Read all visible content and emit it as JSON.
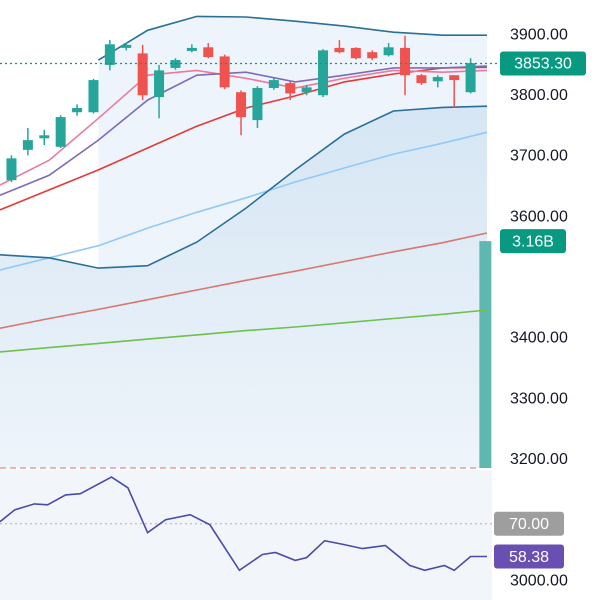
{
  "chart_data": {
    "type": "candlestick",
    "x": [
      1,
      2,
      3,
      4,
      5,
      6,
      7,
      8,
      9,
      10,
      11,
      12,
      13,
      14,
      15,
      16,
      17,
      18,
      19,
      20,
      21,
      22,
      23,
      24,
      25,
      26,
      27,
      28,
      29
    ],
    "open": [
      3661,
      3711,
      3730,
      3716,
      3773,
      3773,
      3851,
      3879,
      3870,
      3798,
      3846,
      3874,
      3880,
      3865,
      3806,
      3760,
      3813,
      3821,
      3806,
      3801,
      3879,
      3879,
      3872,
      3867,
      3879,
      3834,
      3824,
      3834,
      3806
    ],
    "high": [
      3702,
      3747,
      3744,
      3768,
      3786,
      3828,
      3892,
      3888,
      3884,
      3851,
      3862,
      3885,
      3887,
      3868,
      3809,
      3816,
      3829,
      3824,
      3818,
      3877,
      3892,
      3880,
      3875,
      3887,
      3899,
      3836,
      3834,
      3834,
      3862
    ],
    "low": [
      3658,
      3702,
      3719,
      3714,
      3767,
      3771,
      3842,
      3875,
      3793,
      3763,
      3843,
      3872,
      3862,
      3811,
      3735,
      3747,
      3810,
      3793,
      3801,
      3798,
      3870,
      3860,
      3859,
      3865,
      3801,
      3818,
      3814,
      3780,
      3804
    ],
    "close": [
      3697,
      3727,
      3735,
      3765,
      3780,
      3826,
      3885,
      3884,
      3801,
      3842,
      3859,
      3879,
      3864,
      3814,
      3765,
      3813,
      3826,
      3804,
      3814,
      3875,
      3872,
      3862,
      3862,
      3880,
      3834,
      3821,
      3831,
      3826,
      3854
    ],
    "up_color": "#26a69a",
    "down_color": "#ef5350",
    "xlim": [
      0.3,
      30
    ],
    "ylim": [
      2969,
      3958
    ],
    "yticks": [
      {
        "value": 3900,
        "label": "3900.00"
      },
      {
        "value": 3800,
        "label": "3800.00"
      },
      {
        "value": 3700,
        "label": "3700.00"
      },
      {
        "value": 3600,
        "label": "3600.00"
      },
      {
        "value": 3400,
        "label": "3400.00"
      },
      {
        "value": 3300,
        "label": "3300.00"
      },
      {
        "value": 3200,
        "label": "3200.00"
      },
      {
        "value": 3000,
        "label": "3000.00"
      }
    ],
    "grid": false,
    "line_x": [
      0.3,
      3.3,
      6.3,
      9.3,
      12.3,
      15.3,
      18.3,
      21.3,
      24.3,
      27.3,
      30
    ],
    "bands": {
      "color": "#2a6f97",
      "fill": "#eef4fb",
      "upper": [
        null,
        null,
        3859,
        3908,
        3931,
        3930,
        3923,
        3915,
        3905,
        3900,
        3900
      ],
      "lower": [
        3538,
        3533,
        3516,
        3520,
        3559,
        3615,
        3678,
        3737,
        3775,
        3781,
        3783
      ]
    },
    "lines": [
      {
        "color": "#90caf9",
        "values": [
          3513,
          3533,
          3553,
          3582,
          3608,
          3632,
          3658,
          3681,
          3704,
          3722,
          3740
        ]
      },
      {
        "color": "#e53935",
        "values": [
          3612,
          3645,
          3678,
          3714,
          3750,
          3780,
          3800,
          3823,
          3836,
          3846,
          3847
        ]
      },
      {
        "color": "#ec7aa0",
        "values": [
          3653,
          3694,
          3763,
          3834,
          3842,
          3829,
          3813,
          3829,
          3842,
          3839,
          3842
        ]
      },
      {
        "color": "#7e6bb8",
        "values": [
          3636,
          3669,
          3727,
          3793,
          3834,
          3839,
          3823,
          3834,
          3846,
          3846,
          3849
        ]
      },
      {
        "color": "#d9776e",
        "values": [
          3417,
          3433,
          3448,
          3464,
          3480,
          3496,
          3511,
          3527,
          3543,
          3558,
          3574
        ]
      },
      {
        "color": "#6cc24a",
        "values": [
          3378,
          3385,
          3392,
          3399,
          3406,
          3413,
          3419,
          3426,
          3433,
          3440,
          3447
        ]
      }
    ],
    "last_price": {
      "value": 3853.3,
      "label": "3853.30",
      "color": "#089981"
    },
    "volume": {
      "x": [
        29.9
      ],
      "values": [
        3160000000
      ],
      "value_labels": [
        "3.16B"
      ],
      "color": "#5fb8b0",
      "label_color": "#089981",
      "ylim": [
        0,
        5000000000
      ]
    },
    "rsi": {
      "color": "#4a4aa8",
      "x": [
        0.3,
        1.2,
        2.4,
        3.2,
        4.3,
        5.2,
        7.1,
        8.1,
        9.3,
        10.4,
        11.9,
        13.1,
        14.9,
        16.3,
        17.1,
        18.3,
        19.0,
        20.1,
        21.3,
        22.4,
        23.8,
        25.3,
        26.2,
        27.4,
        28.0,
        29.0,
        30
      ],
      "values": [
        70.7,
        74.9,
        77.0,
        76.7,
        80.2,
        80.6,
        86.5,
        82.7,
        66.8,
        71.4,
        73.2,
        69.6,
        53.5,
        59.1,
        59.8,
        57.0,
        58.0,
        64.0,
        62.6,
        61.2,
        62.3,
        55.2,
        53.5,
        55.2,
        53.5,
        58.4,
        58.38
      ],
      "value_labels": [
        null,
        null,
        null,
        null,
        null,
        null,
        null,
        null,
        null,
        null,
        null,
        null,
        null,
        null,
        null,
        null,
        null,
        null,
        null,
        null,
        null,
        null,
        null,
        null,
        null,
        null,
        "58.38"
      ],
      "label_color": "#6a4fb3",
      "ylim": [
        43,
        89
      ],
      "level": {
        "value": 70,
        "label": "70.00",
        "color": "#9e9e9e"
      }
    }
  }
}
